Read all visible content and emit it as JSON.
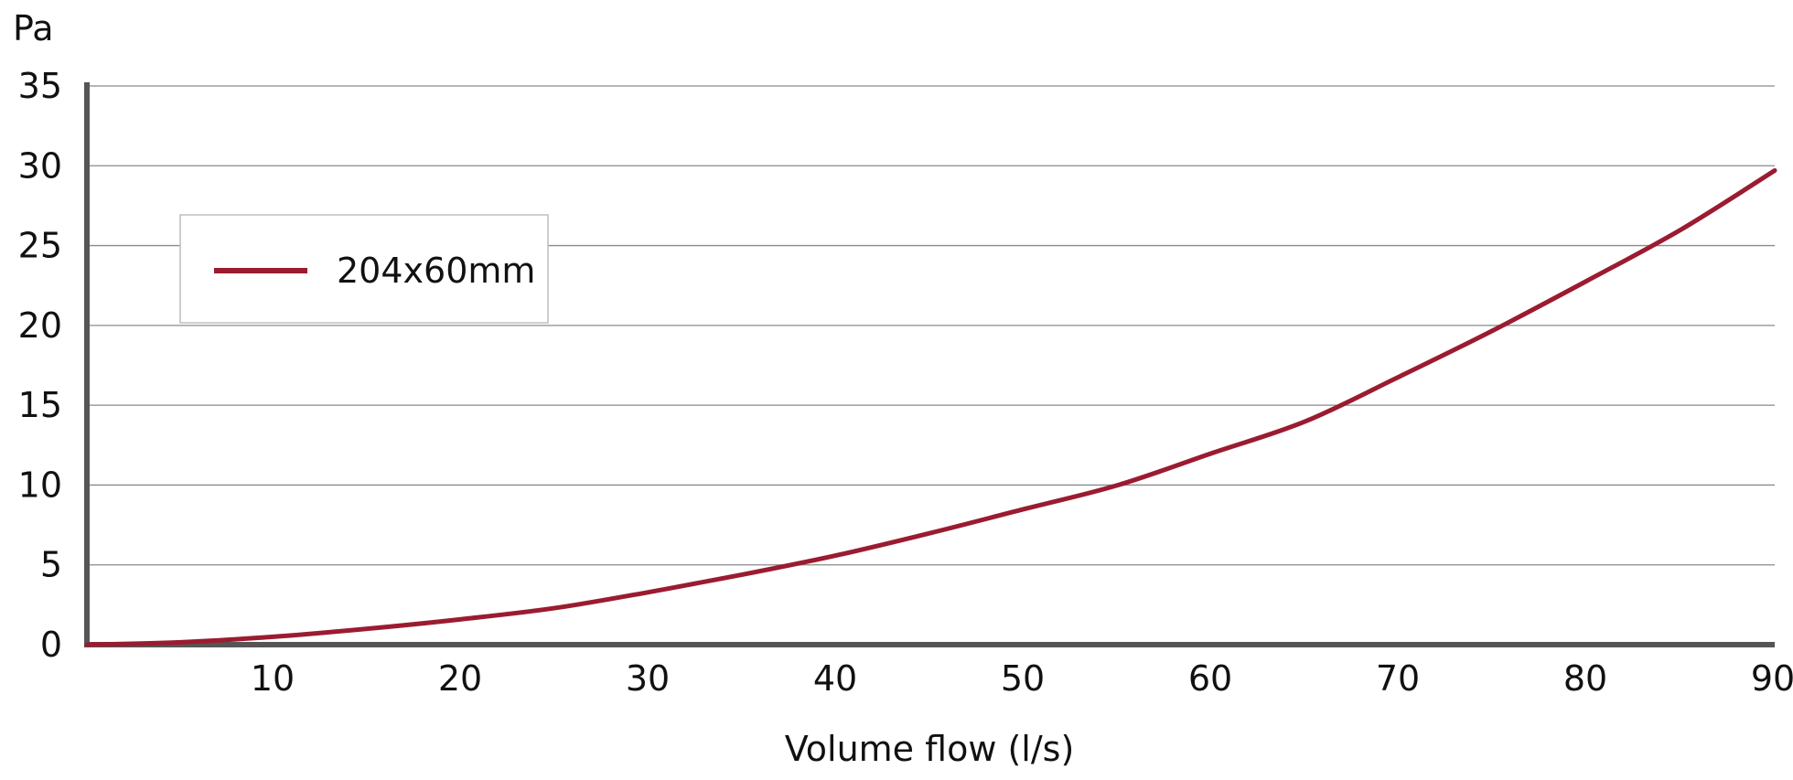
{
  "chart_data": {
    "type": "line",
    "title": "",
    "xlabel": "Volume flow (l/s)",
    "ylabel": "Pa",
    "xlim": [
      0,
      90
    ],
    "ylim": [
      0,
      35
    ],
    "x_ticks": [
      10,
      20,
      30,
      40,
      50,
      60,
      70,
      80,
      90
    ],
    "y_ticks": [
      0,
      5,
      10,
      15,
      20,
      25,
      30,
      35
    ],
    "grid": true,
    "legend_position": "top-left",
    "colors": {
      "series": "#9b1b30",
      "axis": "#555555",
      "grid": "#8a8a8a",
      "legend_border": "#bdbdbd"
    },
    "series": [
      {
        "name": "204x60mm",
        "x": [
          0,
          5,
          10,
          15,
          20,
          25,
          30,
          35,
          40,
          45,
          50,
          55,
          60,
          65,
          70,
          75,
          80,
          85,
          90
        ],
        "y": [
          0,
          0.15,
          0.5,
          1.0,
          1.6,
          2.3,
          3.3,
          4.4,
          5.6,
          7.0,
          8.5,
          10.0,
          12.0,
          14.0,
          16.8,
          19.7,
          22.8,
          26.0,
          29.7
        ]
      }
    ]
  }
}
